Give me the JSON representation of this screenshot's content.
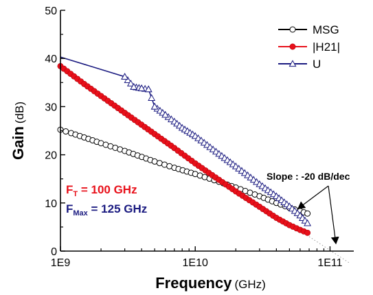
{
  "chart_data": {
    "type": "line",
    "title": "",
    "xlabel": "Frequency",
    "xlabel_unit": "(GHz)",
    "ylabel": "Gain",
    "ylabel_unit": "(dB)",
    "xscale": "log",
    "xlim": [
      1000000000.0,
      150000000000.0
    ],
    "ylim": [
      0,
      50
    ],
    "x_ticks": [
      1000000000.0,
      10000000000.0,
      100000000000.0
    ],
    "x_tick_labels": [
      "1E9",
      "1E10",
      "1E11"
    ],
    "y_ticks": [
      0,
      10,
      20,
      30,
      40,
      50
    ],
    "y_tick_labels": [
      "0",
      "10",
      "20",
      "30",
      "40",
      "50"
    ],
    "grid": false,
    "legend_position": "top-right",
    "series": [
      {
        "name": "MSG",
        "color": "#000000",
        "marker": "open-circle",
        "x": [
          1000000000.0,
          1200000000.0,
          1500000000.0,
          2000000000.0,
          3000000000.0,
          5000000000.0,
          7000000000.0,
          10000000000.0,
          15000000000.0,
          20000000000.0,
          30000000000.0,
          40000000000.0,
          50000000000.0,
          60000000000.0,
          68000000000.0
        ],
        "values": [
          25.2,
          24.5,
          23.6,
          22.4,
          20.8,
          18.6,
          17.3,
          16.0,
          14.4,
          13.2,
          11.4,
          10.0,
          9.0,
          8.3,
          7.8
        ]
      },
      {
        "name": "|H21|",
        "color": "#e8101a",
        "marker": "filled-circle",
        "x": [
          1000000000.0,
          1500000000.0,
          2000000000.0,
          3000000000.0,
          5000000000.0,
          7000000000.0,
          10000000000.0,
          15000000000.0,
          20000000000.0,
          30000000000.0,
          40000000000.0,
          50000000000.0,
          60000000000.0,
          68000000000.0
        ],
        "values": [
          38.4,
          34.7,
          32.2,
          28.7,
          24.3,
          21.4,
          18.2,
          14.8,
          12.4,
          9.2,
          6.9,
          5.4,
          4.4,
          3.8
        ]
      },
      {
        "name": "U",
        "color": "#1a1a80",
        "marker": "open-triangle",
        "x": [
          1000000000.0,
          3000000000.0,
          3500000000.0,
          4000000000.0,
          4500000000.0,
          5000000000.0,
          6000000000.0,
          7000000000.0,
          8000000000.0,
          10000000000.0,
          15000000000.0,
          20000000000.0,
          30000000000.0,
          40000000000.0,
          50000000000.0,
          60000000000.0,
          68000000000.0
        ],
        "values": [
          40.3,
          36.2,
          34.1,
          33.8,
          33.6,
          30.0,
          28.3,
          26.9,
          25.6,
          23.9,
          20.2,
          17.6,
          13.9,
          11.4,
          9.3,
          7.4,
          5.8
        ]
      }
    ],
    "annotations": {
      "ft_label": "F",
      "ft_sub": "T",
      "ft_value": " = 100 GHz",
      "fmax_label": "F",
      "fmax_sub": "Max",
      "fmax_value": " = 125 GHz",
      "slope": "Slope : -20 dB/dec"
    }
  }
}
